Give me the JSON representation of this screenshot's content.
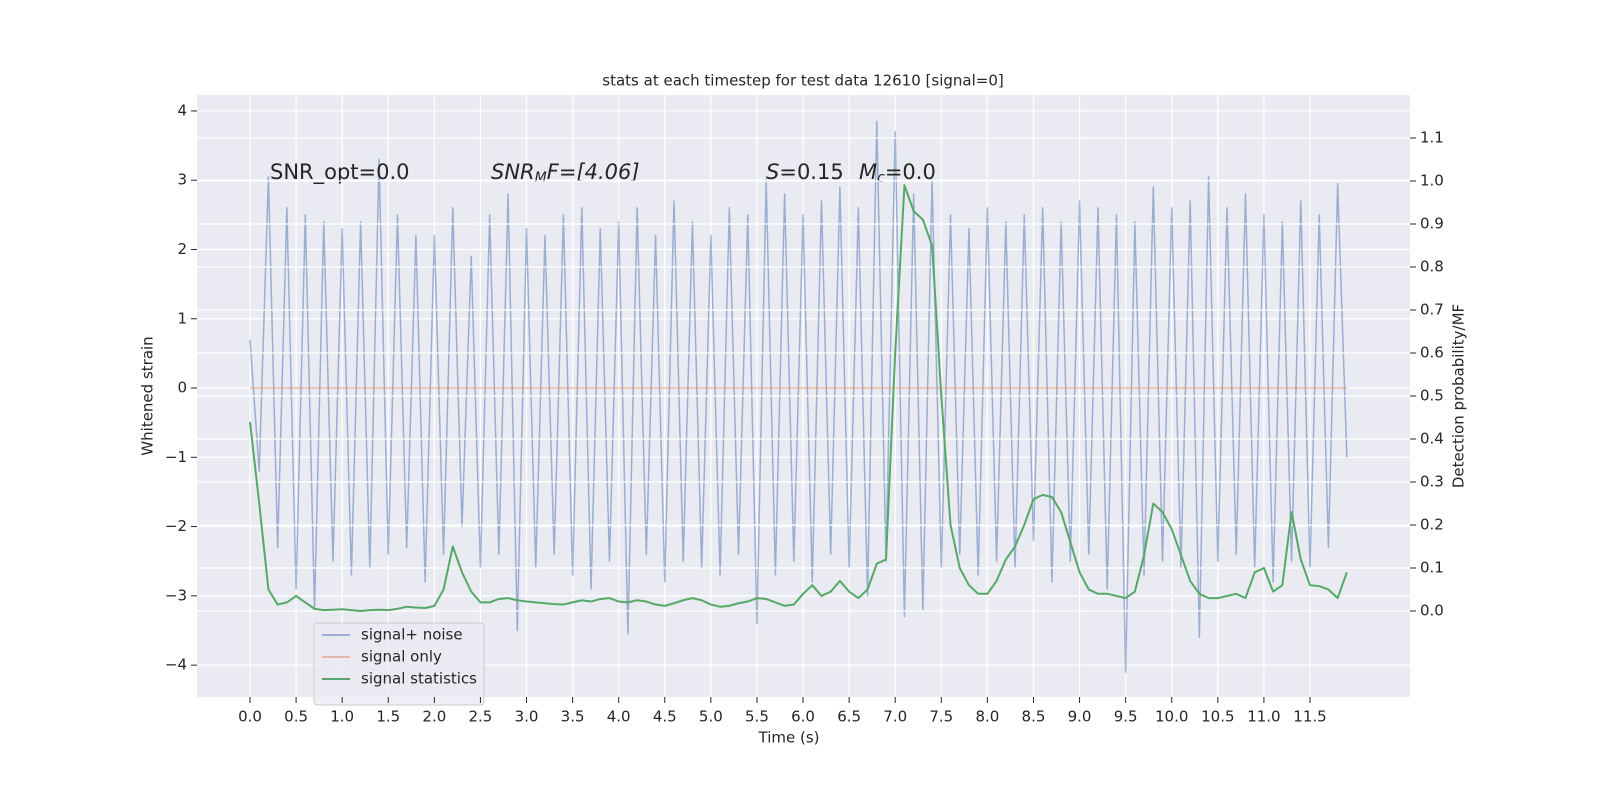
{
  "chart_data": {
    "type": "line",
    "title": "stats at each timestep for test data 12610 [signal=0]",
    "xlabel": "Time (s)",
    "ylabel": "Whitened strain",
    "y2label": "Detection probability/MF",
    "annotations": [
      [
        "SNR_opt=0.0"
      ],
      [
        "SNR",
        "M",
        "F=[4.06]"
      ],
      [
        "S",
        "=0.15"
      ],
      [
        "M",
        "c",
        "=0.0"
      ]
    ],
    "grid": true,
    "legend": "lower left",
    "xlim": [
      -0.575,
      12.585
    ],
    "ylim": [
      -4.46,
      4.23
    ],
    "y2lim": [
      -0.2,
      1.2
    ],
    "xticks": [
      {
        "value": 0,
        "label": "0.0"
      },
      0.5,
      {
        "value": 1,
        "label": "1.0"
      },
      1.5,
      {
        "value": 2,
        "label": "2.0"
      },
      2.5,
      {
        "value": 3,
        "label": "3.0"
      },
      3.5,
      {
        "value": 4,
        "label": "4.0"
      },
      4.5,
      {
        "value": 5,
        "label": "5.0"
      },
      5.5,
      {
        "value": 6,
        "label": "6.0"
      },
      6.5,
      {
        "value": 7,
        "label": "7.0"
      },
      7.5,
      {
        "value": 8,
        "label": "8.0"
      },
      8.5,
      {
        "value": 9,
        "label": "9.0"
      },
      9.5,
      {
        "value": 10,
        "label": "10.0"
      },
      10.5,
      {
        "value": 11,
        "label": "11.0"
      },
      11.5
    ],
    "yticks": [
      {
        "value": -4,
        "label": "−4"
      },
      {
        "value": -3,
        "label": "−3"
      },
      {
        "value": -2,
        "label": "−2"
      },
      {
        "value": -1,
        "label": "−1"
      },
      0,
      1,
      2,
      3,
      4
    ],
    "y2ticks": [
      {
        "value": 0,
        "label": "0.0"
      },
      0.1,
      0.2,
      0.3,
      0.4,
      0.5,
      0.6,
      0.7,
      0.8,
      0.9,
      {
        "value": 1,
        "label": "1.0"
      },
      1.1
    ],
    "x": [
      0.0,
      0.1,
      0.2,
      0.3,
      0.4,
      0.5,
      0.6,
      0.7,
      0.8,
      0.9,
      1.0,
      1.1,
      1.2,
      1.3,
      1.4,
      1.5,
      1.6,
      1.7,
      1.8,
      1.9,
      2.0,
      2.1,
      2.2,
      2.3,
      2.4,
      2.5,
      2.6,
      2.7,
      2.8,
      2.9,
      3.0,
      3.1,
      3.2,
      3.3,
      3.4,
      3.5,
      3.6,
      3.7,
      3.8,
      3.9,
      4.0,
      4.1,
      4.2,
      4.3,
      4.4,
      4.5,
      4.6,
      4.7,
      4.8,
      4.9,
      5.0,
      5.1,
      5.2,
      5.3,
      5.4,
      5.5,
      5.6,
      5.7,
      5.8,
      5.9,
      6.0,
      6.1,
      6.2,
      6.3,
      6.4,
      6.5,
      6.6,
      6.7,
      6.8,
      6.9,
      7.0,
      7.1,
      7.2,
      7.3,
      7.4,
      7.5,
      7.6,
      7.7,
      7.8,
      7.9,
      8.0,
      8.1,
      8.2,
      8.3,
      8.4,
      8.5,
      8.6,
      8.7,
      8.8,
      8.9,
      9.0,
      9.1,
      9.2,
      9.3,
      9.4,
      9.5,
      9.6,
      9.7,
      9.8,
      9.9,
      10.0,
      10.1,
      10.2,
      10.3,
      10.4,
      10.5,
      10.6,
      10.7,
      10.8,
      10.9,
      11.0,
      11.1,
      11.2,
      11.3,
      11.4,
      11.5,
      11.6,
      11.7,
      11.8,
      11.9
    ],
    "series": [
      {
        "name": "signal+ noise",
        "color": "#4c72b0",
        "alpha": 0.5,
        "values": [
          0.7,
          -1.2,
          3.05,
          -2.3,
          2.6,
          -2.9,
          2.5,
          -3.2,
          2.4,
          -2.5,
          2.3,
          -2.7,
          2.4,
          -2.6,
          3.3,
          -2.4,
          2.5,
          -2.3,
          2.2,
          -2.8,
          2.2,
          -2.4,
          2.6,
          -2.0,
          1.9,
          -2.6,
          2.5,
          -2.4,
          2.8,
          -3.5,
          2.3,
          -2.6,
          2.2,
          -2.4,
          2.5,
          -2.7,
          2.6,
          -2.9,
          2.3,
          -2.5,
          2.4,
          -3.55,
          2.6,
          -2.4,
          2.2,
          -2.8,
          2.7,
          -2.5,
          2.4,
          -2.6,
          2.2,
          -2.7,
          2.6,
          -2.4,
          2.5,
          -3.4,
          3.0,
          -2.7,
          2.8,
          -2.5,
          2.5,
          -2.8,
          2.7,
          -2.4,
          2.9,
          -2.6,
          2.6,
          -3.0,
          3.85,
          -2.5,
          3.7,
          -3.3,
          2.8,
          -3.2,
          3.0,
          -2.6,
          2.5,
          -2.4,
          2.3,
          -2.7,
          2.6,
          -2.5,
          2.4,
          -2.6,
          2.5,
          -2.2,
          2.6,
          -2.8,
          2.4,
          -2.5,
          2.7,
          -2.4,
          2.6,
          -2.9,
          2.5,
          -4.1,
          2.4,
          -2.7,
          2.9,
          -2.5,
          2.6,
          -2.6,
          2.7,
          -3.6,
          3.05,
          -2.5,
          2.6,
          -2.4,
          2.8,
          -2.6,
          2.5,
          -2.8,
          2.4,
          -2.5,
          2.7,
          -2.6,
          2.5,
          -2.3,
          2.95,
          -1.0
        ]
      },
      {
        "name": "signal only",
        "color": "#dd8452",
        "alpha": 0.5,
        "values": [
          0,
          0,
          0,
          0,
          0,
          0,
          0,
          0,
          0,
          0,
          0,
          0,
          0,
          0,
          0,
          0,
          0,
          0,
          0,
          0,
          0,
          0,
          0,
          0,
          0,
          0,
          0,
          0,
          0,
          0,
          0,
          0,
          0,
          0,
          0,
          0,
          0,
          0,
          0,
          0,
          0,
          0,
          0,
          0,
          0,
          0,
          0,
          0,
          0,
          0,
          0,
          0,
          0,
          0,
          0,
          0,
          0,
          0,
          0,
          0,
          0,
          0,
          0,
          0,
          0,
          0,
          0,
          0,
          0,
          0,
          0,
          0,
          0,
          0,
          0,
          0,
          0,
          0,
          0,
          0,
          0,
          0,
          0,
          0,
          0,
          0,
          0,
          0,
          0,
          0,
          0,
          0,
          0,
          0,
          0,
          0,
          0,
          0,
          0,
          0,
          0,
          0,
          0,
          0,
          0,
          0,
          0,
          0,
          0,
          0,
          0,
          0,
          0,
          0,
          0,
          0,
          0,
          0,
          0,
          0
        ]
      },
      {
        "name": "signal statistics",
        "color": "#55a868",
        "alpha": 1,
        "axis": "y2",
        "values": [
          0.44,
          0.25,
          0.05,
          0.015,
          0.02,
          0.035,
          0.02,
          0.005,
          0.002,
          0.003,
          0.004,
          0.002,
          0.0,
          0.002,
          0.003,
          0.002,
          0.005,
          0.01,
          0.008,
          0.007,
          0.012,
          0.05,
          0.15,
          0.09,
          0.045,
          0.02,
          0.02,
          0.028,
          0.03,
          0.025,
          0.022,
          0.02,
          0.018,
          0.016,
          0.015,
          0.02,
          0.025,
          0.022,
          0.028,
          0.03,
          0.022,
          0.02,
          0.025,
          0.022,
          0.015,
          0.012,
          0.018,
          0.025,
          0.03,
          0.025,
          0.015,
          0.01,
          0.012,
          0.018,
          0.022,
          0.03,
          0.028,
          0.02,
          0.012,
          0.015,
          0.04,
          0.06,
          0.035,
          0.045,
          0.07,
          0.045,
          0.03,
          0.05,
          0.11,
          0.12,
          0.6,
          0.99,
          0.93,
          0.91,
          0.85,
          0.5,
          0.2,
          0.1,
          0.06,
          0.04,
          0.04,
          0.07,
          0.12,
          0.15,
          0.2,
          0.26,
          0.27,
          0.265,
          0.23,
          0.16,
          0.09,
          0.05,
          0.04,
          0.04,
          0.035,
          0.03,
          0.045,
          0.13,
          0.25,
          0.23,
          0.19,
          0.13,
          0.07,
          0.04,
          0.03,
          0.03,
          0.035,
          0.04,
          0.03,
          0.09,
          0.1,
          0.045,
          0.06,
          0.23,
          0.12,
          0.06,
          0.058,
          0.05,
          0.03,
          0.09
        ]
      }
    ]
  }
}
